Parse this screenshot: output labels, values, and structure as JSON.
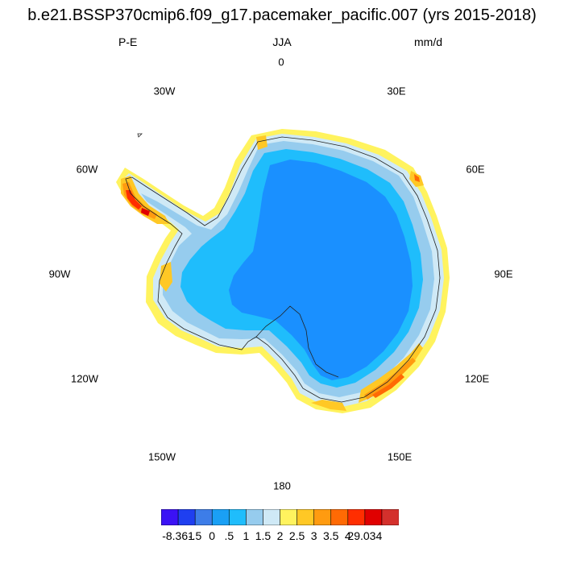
{
  "title": "b.e21.BSSP370cmip6.f09_g17.pacemaker_pacific.007 (yrs 2015-2018)",
  "left_label": "P-E",
  "center_label": "JJA",
  "right_label": "mm/d",
  "longitude_labels": {
    "lon_0": "0",
    "lon_30e": "30E",
    "lon_60e": "60E",
    "lon_90e": "90E",
    "lon_120e": "120E",
    "lon_150e": "150E",
    "lon_180": "180",
    "lon_150w": "150W",
    "lon_120w": "120W",
    "lon_90w": "90W",
    "lon_60w": "60W",
    "lon_30w": "30W"
  },
  "colorbar": {
    "colors": [
      "#3b12f5",
      "#1f3ff0",
      "#3d7de8",
      "#1aa0f5",
      "#1fbdfc",
      "#96ccee",
      "#cfe9f6",
      "#fff35e",
      "#ffc825",
      "#ff9b10",
      "#ff6a04",
      "#ff2e00",
      "#e00000",
      "#d4302c"
    ],
    "labels": [
      "-8.361",
      "-.5",
      "0",
      ".5",
      "1",
      "1.5",
      "2",
      "2.5",
      "3",
      "3.5",
      "4",
      "29.034"
    ]
  }
}
